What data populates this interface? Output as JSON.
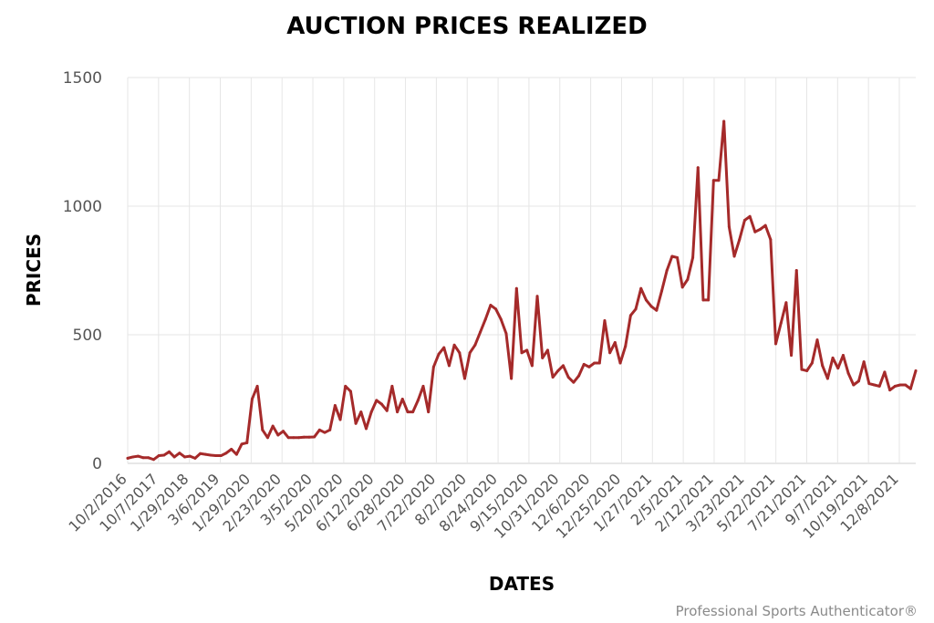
{
  "chart_data": {
    "type": "line",
    "title": "AUCTION PRICES REALIZED",
    "xlabel": "DATES",
    "ylabel": "PRICES",
    "ylim": [
      0,
      1500
    ],
    "yticks": [
      0,
      500,
      1000,
      1500
    ],
    "grid": true,
    "legend": "none",
    "colors": {
      "line": "#a52a2a"
    },
    "x_tick_labels": [
      "10/2/2016",
      "10/7/2017",
      "1/29/2018",
      "3/6/2019",
      "1/29/2020",
      "2/23/2020",
      "3/5/2020",
      "5/20/2020",
      "6/12/2020",
      "6/28/2020",
      "7/22/2020",
      "8/2/2020",
      "8/24/2020",
      "9/15/2020",
      "10/31/2020",
      "12/6/2020",
      "12/25/2020",
      "1/27/2021",
      "2/5/2021",
      "2/12/2021",
      "3/23/2021",
      "5/22/2021",
      "7/21/2021",
      "9/7/2021",
      "10/19/2021",
      "12/8/2021"
    ],
    "values": [
      20,
      25,
      28,
      22,
      22,
      15,
      30,
      32,
      45,
      25,
      40,
      25,
      28,
      20,
      38,
      35,
      32,
      30,
      30,
      40,
      55,
      35,
      75,
      80,
      250,
      300,
      130,
      100,
      145,
      110,
      125,
      100,
      100,
      100,
      102,
      102,
      103,
      130,
      120,
      130,
      225,
      170,
      300,
      280,
      155,
      200,
      135,
      200,
      245,
      230,
      205,
      300,
      200,
      250,
      200,
      200,
      245,
      300,
      200,
      375,
      425,
      450,
      380,
      460,
      430,
      330,
      430,
      460,
      510,
      560,
      615,
      600,
      560,
      505,
      330,
      680,
      430,
      440,
      380,
      650,
      410,
      440,
      335,
      360,
      380,
      335,
      315,
      340,
      385,
      375,
      390,
      390,
      555,
      430,
      470,
      390,
      455,
      575,
      600,
      680,
      635,
      610,
      595,
      670,
      750,
      805,
      800,
      685,
      715,
      800,
      1150,
      635,
      635,
      1100,
      1100,
      1330,
      920,
      805,
      870,
      945,
      960,
      900,
      910,
      925,
      870,
      465,
      545,
      625,
      420,
      750,
      365,
      360,
      390,
      480,
      380,
      330,
      410,
      370,
      420,
      350,
      305,
      320,
      395,
      310,
      305,
      300,
      355,
      285,
      300,
      305,
      305,
      290,
      360
    ]
  },
  "credit": "Professional Sports Authenticator®"
}
